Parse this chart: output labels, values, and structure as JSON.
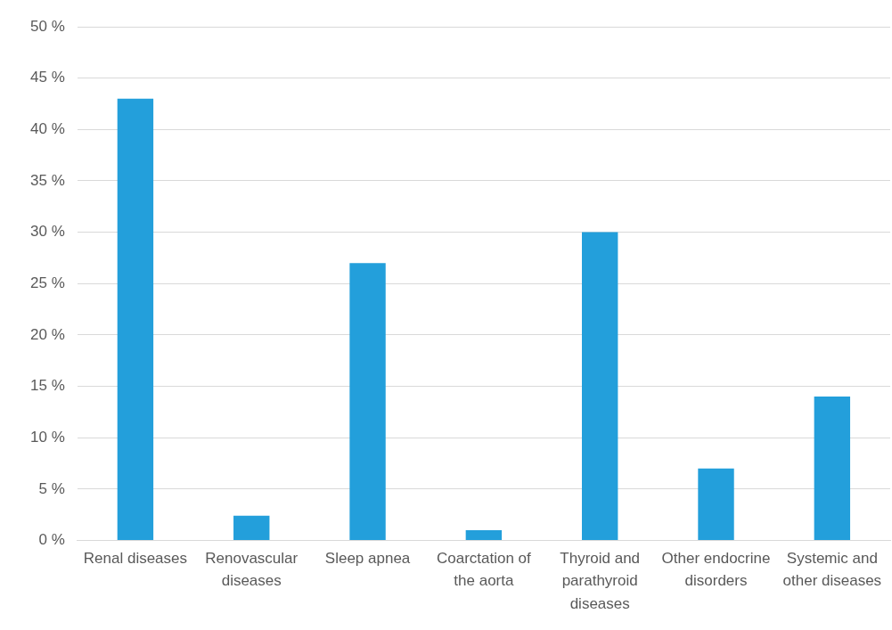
{
  "chart_data": {
    "type": "bar",
    "categories": [
      "Renal diseases",
      "Renovascular diseases",
      "Sleep apnea",
      "Coarctation of the aorta",
      "Thyroid and parathyroid diseases",
      "Other endocrine disorders",
      "Systemic and other diseases"
    ],
    "values": [
      43,
      2.4,
      27,
      1,
      30,
      7,
      14
    ],
    "color": "#239fdb",
    "ylim": [
      0,
      50
    ],
    "yticks": [
      {
        "value": 0,
        "label": "0 %"
      },
      {
        "value": 5,
        "label": "5 %"
      },
      {
        "value": 10,
        "label": "10 %"
      },
      {
        "value": 15,
        "label": "15 %"
      },
      {
        "value": 20,
        "label": "20 %"
      },
      {
        "value": 25,
        "label": "25 %"
      },
      {
        "value": 30,
        "label": "30 %"
      },
      {
        "value": 35,
        "label": "35 %"
      },
      {
        "value": 40,
        "label": "40 %"
      },
      {
        "value": 45,
        "label": "45 %"
      },
      {
        "value": 50,
        "label": "50 %"
      }
    ],
    "grid": "y",
    "legend": false
  }
}
